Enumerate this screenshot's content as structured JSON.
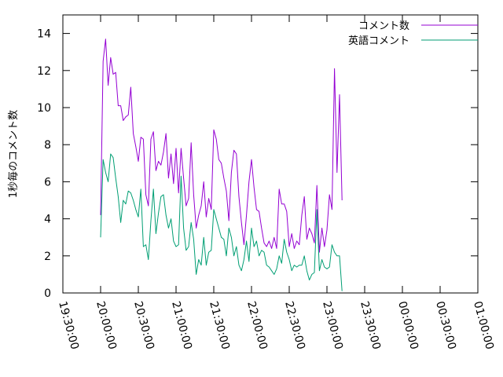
{
  "chart_data": {
    "type": "line",
    "title": "",
    "xlabel": "",
    "ylabel": "1秒毎のコメント数",
    "ylim": [
      0,
      15
    ],
    "xlim": [
      "19:30:00",
      "01:00:00"
    ],
    "grid": false,
    "legend_position": "top-right",
    "x_tick_labels": [
      "19:30:00",
      "20:00:00",
      "20:30:00",
      "21:00:00",
      "21:30:00",
      "22:00:00",
      "22:30:00",
      "23:00:00",
      "23:30:00",
      "00:00:00",
      "00:30:00",
      "01:00:00"
    ],
    "y_ticks": [
      0,
      2,
      4,
      6,
      8,
      10,
      12,
      14
    ],
    "series": [
      {
        "name": "コメント数",
        "color": "#9400d3",
        "points": [
          [
            "20:00:00",
            4.2
          ],
          [
            "20:02:00",
            12.5
          ],
          [
            "20:04:00",
            13.7
          ],
          [
            "20:06:00",
            11.2
          ],
          [
            "20:08:00",
            12.7
          ],
          [
            "20:10:00",
            11.8
          ],
          [
            "20:12:00",
            11.9
          ],
          [
            "20:14:00",
            10.1
          ],
          [
            "20:16:00",
            10.1
          ],
          [
            "20:18:00",
            9.3
          ],
          [
            "20:20:00",
            9.5
          ],
          [
            "20:22:00",
            9.6
          ],
          [
            "20:24:00",
            11.1
          ],
          [
            "20:26:00",
            8.6
          ],
          [
            "20:28:00",
            7.9
          ],
          [
            "20:30:00",
            7.1
          ],
          [
            "20:32:00",
            8.4
          ],
          [
            "20:34:00",
            8.3
          ],
          [
            "20:36:00",
            5.3
          ],
          [
            "20:38:00",
            4.7
          ],
          [
            "20:40:00",
            8.3
          ],
          [
            "20:42:00",
            8.7
          ],
          [
            "20:44:00",
            6.6
          ],
          [
            "20:46:00",
            7.1
          ],
          [
            "20:48:00",
            6.9
          ],
          [
            "20:50:00",
            7.6
          ],
          [
            "20:52:00",
            8.6
          ],
          [
            "20:54:00",
            6.2
          ],
          [
            "20:56:00",
            7.5
          ],
          [
            "20:58:00",
            5.9
          ],
          [
            "21:00:00",
            7.8
          ],
          [
            "21:02:00",
            5.4
          ],
          [
            "21:04:00",
            7.8
          ],
          [
            "21:06:00",
            6.2
          ],
          [
            "21:08:00",
            4.7
          ],
          [
            "21:10:00",
            5.1
          ],
          [
            "21:12:00",
            8.1
          ],
          [
            "21:14:00",
            5.3
          ],
          [
            "21:16:00",
            3.5
          ],
          [
            "21:18:00",
            4.2
          ],
          [
            "21:20:00",
            4.7
          ],
          [
            "21:22:00",
            6.0
          ],
          [
            "21:24:00",
            4.1
          ],
          [
            "21:26:00",
            5.1
          ],
          [
            "21:28:00",
            4.5
          ],
          [
            "21:30:00",
            8.8
          ],
          [
            "21:32:00",
            8.3
          ],
          [
            "21:34:00",
            7.2
          ],
          [
            "21:36:00",
            7.0
          ],
          [
            "21:38:00",
            6.2
          ],
          [
            "21:40:00",
            5.5
          ],
          [
            "21:42:00",
            3.9
          ],
          [
            "21:44:00",
            6.5
          ],
          [
            "21:46:00",
            7.7
          ],
          [
            "21:48:00",
            7.5
          ],
          [
            "21:50:00",
            5.2
          ],
          [
            "21:52:00",
            3.8
          ],
          [
            "21:54:00",
            2.6
          ],
          [
            "21:56:00",
            4.2
          ],
          [
            "21:58:00",
            6.0
          ],
          [
            "22:00:00",
            7.2
          ],
          [
            "22:02:00",
            5.7
          ],
          [
            "22:04:00",
            4.5
          ],
          [
            "22:06:00",
            4.4
          ],
          [
            "22:08:00",
            3.5
          ],
          [
            "22:10:00",
            2.7
          ],
          [
            "22:12:00",
            2.5
          ],
          [
            "22:14:00",
            2.8
          ],
          [
            "22:16:00",
            2.4
          ],
          [
            "22:18:00",
            3.0
          ],
          [
            "22:20:00",
            2.4
          ],
          [
            "22:22:00",
            5.6
          ],
          [
            "22:24:00",
            4.8
          ],
          [
            "22:26:00",
            4.8
          ],
          [
            "22:28:00",
            4.4
          ],
          [
            "22:30:00",
            2.5
          ],
          [
            "22:32:00",
            3.2
          ],
          [
            "22:34:00",
            2.4
          ],
          [
            "22:36:00",
            2.8
          ],
          [
            "22:38:00",
            2.6
          ],
          [
            "22:40:00",
            4.2
          ],
          [
            "22:42:00",
            5.2
          ],
          [
            "22:44:00",
            2.9
          ],
          [
            "22:46:00",
            3.5
          ],
          [
            "22:48:00",
            3.2
          ],
          [
            "22:50:00",
            2.7
          ],
          [
            "22:52:00",
            5.8
          ],
          [
            "22:54:00",
            2.2
          ],
          [
            "22:56:00",
            3.5
          ],
          [
            "22:58:00",
            2.5
          ],
          [
            "23:00:00",
            3.4
          ],
          [
            "23:02:00",
            5.3
          ],
          [
            "23:04:00",
            4.5
          ],
          [
            "23:06:00",
            12.1
          ],
          [
            "23:08:00",
            6.5
          ],
          [
            "23:10:00",
            10.7
          ],
          [
            "23:12:00",
            5.0
          ]
        ]
      },
      {
        "name": "英語コメント",
        "color": "#009e73",
        "points": [
          [
            "20:00:00",
            3.0
          ],
          [
            "20:02:00",
            7.2
          ],
          [
            "20:04:00",
            6.5
          ],
          [
            "20:06:00",
            6.0
          ],
          [
            "20:08:00",
            7.5
          ],
          [
            "20:10:00",
            7.3
          ],
          [
            "20:12:00",
            6.2
          ],
          [
            "20:14:00",
            5.2
          ],
          [
            "20:16:00",
            3.8
          ],
          [
            "20:18:00",
            5.0
          ],
          [
            "20:20:00",
            4.8
          ],
          [
            "20:22:00",
            5.5
          ],
          [
            "20:24:00",
            5.4
          ],
          [
            "20:26:00",
            5.0
          ],
          [
            "20:28:00",
            4.5
          ],
          [
            "20:30:00",
            4.1
          ],
          [
            "20:32:00",
            5.6
          ],
          [
            "20:34:00",
            2.5
          ],
          [
            "20:36:00",
            2.6
          ],
          [
            "20:38:00",
            1.8
          ],
          [
            "20:40:00",
            3.9
          ],
          [
            "20:42:00",
            5.6
          ],
          [
            "20:44:00",
            3.2
          ],
          [
            "20:46:00",
            4.3
          ],
          [
            "20:48:00",
            5.2
          ],
          [
            "20:50:00",
            5.3
          ],
          [
            "20:52:00",
            4.2
          ],
          [
            "20:54:00",
            3.5
          ],
          [
            "20:56:00",
            4.0
          ],
          [
            "20:58:00",
            2.8
          ],
          [
            "21:00:00",
            2.5
          ],
          [
            "21:02:00",
            2.6
          ],
          [
            "21:04:00",
            6.3
          ],
          [
            "21:06:00",
            3.5
          ],
          [
            "21:08:00",
            2.3
          ],
          [
            "21:10:00",
            2.5
          ],
          [
            "21:12:00",
            3.8
          ],
          [
            "21:14:00",
            2.9
          ],
          [
            "21:16:00",
            1.0
          ],
          [
            "21:18:00",
            1.8
          ],
          [
            "21:20:00",
            1.5
          ],
          [
            "21:22:00",
            3.0
          ],
          [
            "21:24:00",
            1.5
          ],
          [
            "21:26:00",
            2.2
          ],
          [
            "21:28:00",
            2.3
          ],
          [
            "21:30:00",
            4.5
          ],
          [
            "21:32:00",
            4.0
          ],
          [
            "21:34:00",
            3.5
          ],
          [
            "21:36:00",
            3.0
          ],
          [
            "21:38:00",
            2.9
          ],
          [
            "21:40:00",
            2.0
          ],
          [
            "21:42:00",
            3.5
          ],
          [
            "21:44:00",
            3.0
          ],
          [
            "21:46:00",
            2.0
          ],
          [
            "21:48:00",
            2.5
          ],
          [
            "21:50:00",
            1.5
          ],
          [
            "21:52:00",
            1.2
          ],
          [
            "21:54:00",
            1.8
          ],
          [
            "21:56:00",
            2.8
          ],
          [
            "21:58:00",
            1.7
          ],
          [
            "22:00:00",
            3.5
          ],
          [
            "22:02:00",
            2.5
          ],
          [
            "22:04:00",
            2.8
          ],
          [
            "22:06:00",
            2.0
          ],
          [
            "22:08:00",
            2.3
          ],
          [
            "22:10:00",
            2.2
          ],
          [
            "22:12:00",
            1.5
          ],
          [
            "22:14:00",
            1.4
          ],
          [
            "22:16:00",
            1.2
          ],
          [
            "22:18:00",
            1.0
          ],
          [
            "22:20:00",
            1.3
          ],
          [
            "22:22:00",
            2.0
          ],
          [
            "22:24:00",
            1.6
          ],
          [
            "22:26:00",
            2.9
          ],
          [
            "22:28:00",
            2.2
          ],
          [
            "22:30:00",
            1.8
          ],
          [
            "22:32:00",
            1.2
          ],
          [
            "22:34:00",
            1.5
          ],
          [
            "22:36:00",
            1.4
          ],
          [
            "22:38:00",
            1.5
          ],
          [
            "22:40:00",
            1.5
          ],
          [
            "22:42:00",
            2.0
          ],
          [
            "22:44:00",
            1.2
          ],
          [
            "22:46:00",
            0.7
          ],
          [
            "22:48:00",
            1.0
          ],
          [
            "22:50:00",
            1.1
          ],
          [
            "22:52:00",
            4.5
          ],
          [
            "22:54:00",
            1.2
          ],
          [
            "22:56:00",
            1.8
          ],
          [
            "22:58:00",
            1.4
          ],
          [
            "23:00:00",
            1.3
          ],
          [
            "23:02:00",
            1.4
          ],
          [
            "23:04:00",
            2.6
          ],
          [
            "23:06:00",
            2.2
          ],
          [
            "23:08:00",
            2.0
          ],
          [
            "23:10:00",
            2.0
          ],
          [
            "23:12:00",
            0.1
          ]
        ]
      }
    ]
  }
}
